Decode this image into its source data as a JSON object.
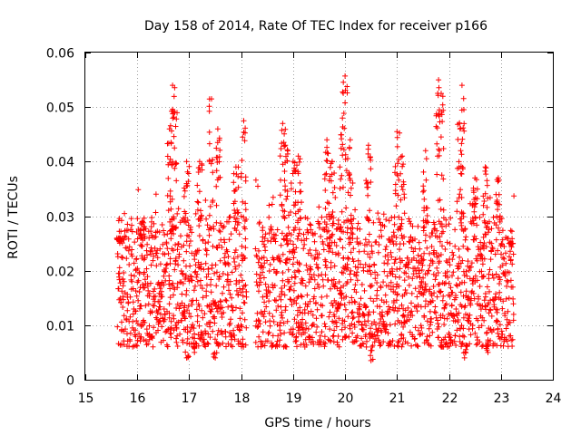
{
  "chart_data": {
    "type": "scatter",
    "title": "Day 158 of 2014, Rate Of TEC Index for receiver p166",
    "xlabel": "GPS time / hours",
    "ylabel": "ROTI / TECUs",
    "xlim": [
      15,
      24
    ],
    "ylim": [
      0,
      0.06
    ],
    "xticks": [
      "15",
      "16",
      "17",
      "18",
      "19",
      "20",
      "21",
      "22",
      "23",
      "24"
    ],
    "yticks": [
      "0",
      "0.01",
      "0.02",
      "0.03",
      "0.04",
      "0.05",
      "0.06"
    ],
    "grid": true,
    "marker": "+",
    "color": "#ff0000",
    "series": [
      {
        "name": "ROTI",
        "segments": [
          {
            "x_start": 15.62,
            "x_end": 18.1
          },
          {
            "x_start": 18.28,
            "x_end": 23.25
          }
        ],
        "typical_range": [
          0.006,
          0.03
        ],
        "peaks": [
          {
            "x": 15.65,
            "y": 0.026
          },
          {
            "x": 16.1,
            "y": 0.029
          },
          {
            "x": 16.62,
            "y": 0.046
          },
          {
            "x": 16.68,
            "y": 0.054
          },
          {
            "x": 16.72,
            "y": 0.049
          },
          {
            "x": 16.95,
            "y": 0.04
          },
          {
            "x": 17.2,
            "y": 0.04
          },
          {
            "x": 17.43,
            "y": 0.0515
          },
          {
            "x": 17.55,
            "y": 0.046
          },
          {
            "x": 17.9,
            "y": 0.039
          },
          {
            "x": 18.05,
            "y": 0.0475
          },
          {
            "x": 18.8,
            "y": 0.047
          },
          {
            "x": 18.85,
            "y": 0.043
          },
          {
            "x": 19.0,
            "y": 0.04
          },
          {
            "x": 19.1,
            "y": 0.041
          },
          {
            "x": 19.65,
            "y": 0.044
          },
          {
            "x": 19.75,
            "y": 0.04
          },
          {
            "x": 19.95,
            "y": 0.048
          },
          {
            "x": 20.0,
            "y": 0.0557
          },
          {
            "x": 20.1,
            "y": 0.044
          },
          {
            "x": 20.45,
            "y": 0.043
          },
          {
            "x": 21.0,
            "y": 0.0455
          },
          {
            "x": 21.1,
            "y": 0.041
          },
          {
            "x": 21.55,
            "y": 0.042
          },
          {
            "x": 21.8,
            "y": 0.055
          },
          {
            "x": 21.85,
            "y": 0.0525
          },
          {
            "x": 22.2,
            "y": 0.047
          },
          {
            "x": 22.25,
            "y": 0.054
          },
          {
            "x": 22.5,
            "y": 0.037
          },
          {
            "x": 22.7,
            "y": 0.039
          },
          {
            "x": 22.95,
            "y": 0.037
          },
          {
            "x": 23.2,
            "y": 0.025
          }
        ],
        "lows": [
          {
            "x": 16.95,
            "y": 0.004
          },
          {
            "x": 17.1,
            "y": 0.005
          },
          {
            "x": 17.5,
            "y": 0.004
          },
          {
            "x": 20.5,
            "y": 0.0035
          },
          {
            "x": 22.3,
            "y": 0.004
          },
          {
            "x": 22.75,
            "y": 0.005
          }
        ]
      }
    ]
  }
}
